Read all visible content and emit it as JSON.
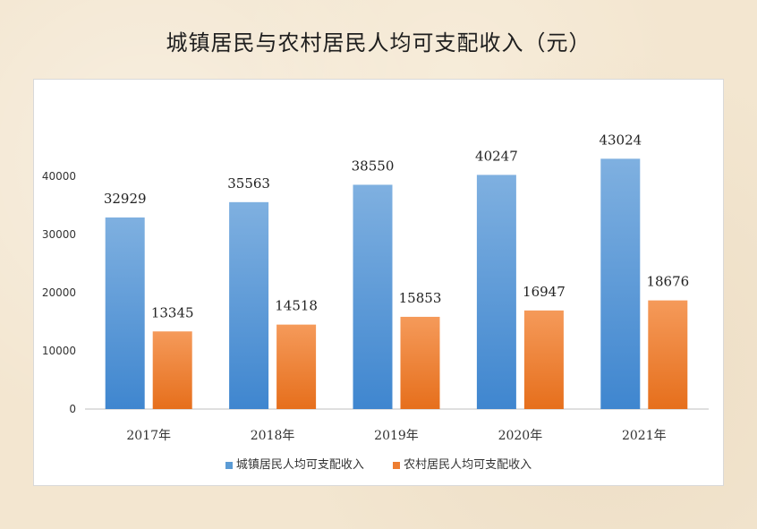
{
  "title": "城镇居民与农村居民人均可支配收入（元）",
  "colors": {
    "urban": "#5b9bd5",
    "rural": "#ed7d31"
  },
  "chart_data": {
    "type": "bar",
    "title": "城镇居民与农村居民人均可支配收入（元）",
    "categories": [
      "2017年",
      "2018年",
      "2019年",
      "2020年",
      "2021年"
    ],
    "series": [
      {
        "name": "城镇居民人均可支配收入",
        "values": [
          32929,
          35563,
          38550,
          40247,
          43024
        ]
      },
      {
        "name": "农村居民人均可支配收入",
        "values": [
          13345,
          14518,
          15853,
          16947,
          18676
        ]
      }
    ],
    "yticks": [
      "0",
      "10000",
      "20000",
      "30000",
      "40000"
    ],
    "ylim": [
      0,
      45000
    ],
    "xlabel": "",
    "ylabel": "",
    "grid": false,
    "legend_position": "bottom"
  }
}
